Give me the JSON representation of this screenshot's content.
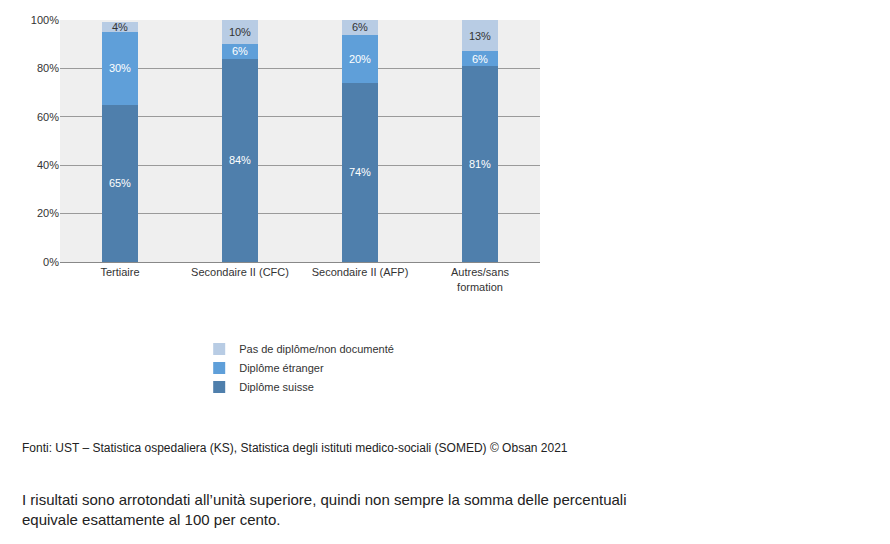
{
  "chart_data": {
    "type": "bar",
    "stacked": true,
    "data_labels": true,
    "grid": true,
    "legend": "bottom",
    "categories": [
      "Tertiaire",
      "Secondaire II (CFC)",
      "Secondaire II (AFP)",
      "Autres/sans formation"
    ],
    "series": [
      {
        "name": "Diplôme suisse",
        "color": "#4f7fac",
        "values": [
          65,
          84,
          74,
          81
        ],
        "value_labels": [
          "65%",
          "84%",
          "74%",
          "81%"
        ]
      },
      {
        "name": "Diplôme étranger",
        "color": "#5f9fd9",
        "values": [
          30,
          6,
          20,
          6
        ],
        "value_labels": [
          "30%",
          "6%",
          "20%",
          "6%"
        ]
      },
      {
        "name": "Pas de diplôme/non documenté",
        "color": "#b8cce4",
        "values": [
          4,
          10,
          6,
          13
        ],
        "value_labels": [
          "4%",
          "10%",
          "6%",
          "13%"
        ]
      }
    ],
    "ylim": [
      0,
      100
    ],
    "yticks": [
      {
        "value": 0,
        "label": "0%"
      },
      {
        "value": 20,
        "label": "20%"
      },
      {
        "value": 40,
        "label": "40%"
      },
      {
        "value": 60,
        "label": "60%"
      },
      {
        "value": 80,
        "label": "80%"
      },
      {
        "value": 100,
        "label": "100%"
      }
    ],
    "annotations": [
      "Fonti: UST – Statistica ospedaliera (KS), Statistica degli istituti medico-sociali (SOMED) © Obsan 2021",
      "I risultati sono arrotondati all’unità superiore, quindi non sempre la somma delle percentuali equivale esattamente al 100 per cento."
    ]
  }
}
